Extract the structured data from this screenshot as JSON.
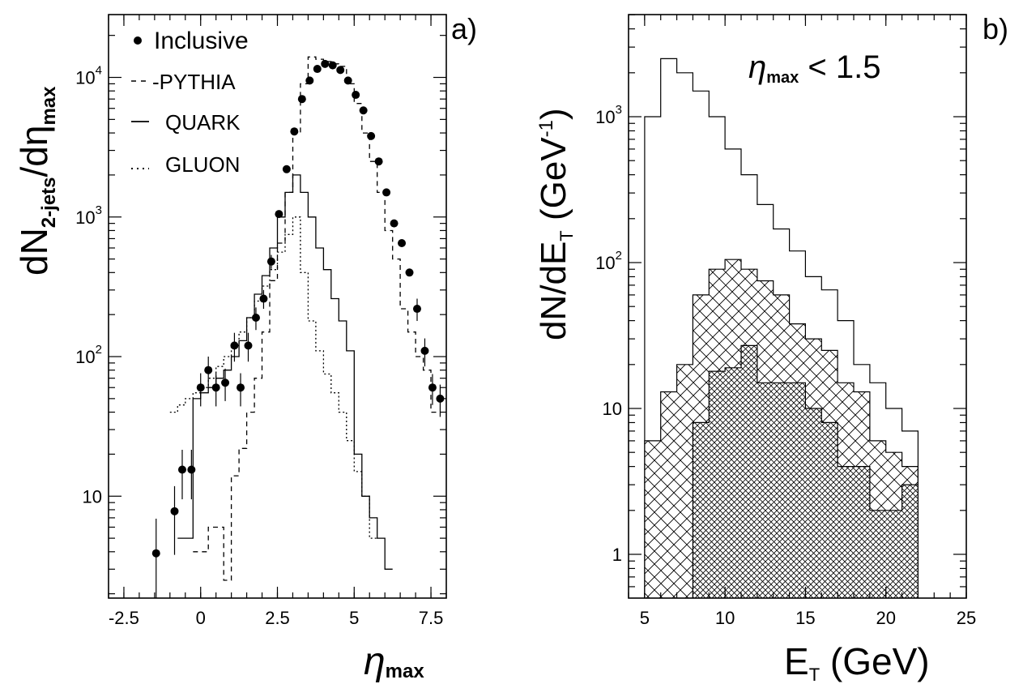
{
  "chart_data": [
    {
      "type": "line",
      "panel_label": "a)",
      "xlabel_main": "η",
      "xlabel_sub": "max",
      "ylabel_main": "dN",
      "ylabel_sub1": "2-jets",
      "ylabel_mid": "/dη",
      "ylabel_sub2": "max",
      "xlim": [
        -3.0,
        8.0
      ],
      "ylim_log10": [
        0.27,
        4.45
      ],
      "log_y": true,
      "x_ticks": [
        "-2.5",
        "0",
        "2.5",
        "5",
        "7.5"
      ],
      "x_tick_values": [
        -2.5,
        0,
        2.5,
        5,
        7.5
      ],
      "y_ticks": [
        {
          "base": "10",
          "exp": "",
          "log": 1
        },
        {
          "base": "10",
          "exp": "2",
          "log": 2
        },
        {
          "base": "10",
          "exp": "3",
          "log": 3
        },
        {
          "base": "10",
          "exp": "4",
          "log": 4
        }
      ],
      "legend": [
        {
          "name": "Inclusive",
          "marker": "dot"
        },
        {
          "name": "-PYTHIA",
          "marker": "dashed"
        },
        {
          "name": "QUARK",
          "marker": "solid"
        },
        {
          "name": "GLUON",
          "marker": "dotted"
        }
      ],
      "series": [
        {
          "name": "Inclusive",
          "style": "points",
          "x": [
            -1.45,
            -0.85,
            -0.6,
            -0.3,
            0.0,
            0.25,
            0.5,
            0.8,
            1.1,
            1.3,
            1.55,
            1.8,
            2.05,
            2.3,
            2.55,
            2.8,
            3.05,
            3.3,
            3.55,
            3.8,
            4.05,
            4.3,
            4.55,
            4.8,
            5.05,
            5.3,
            5.55,
            5.8,
            6.05,
            6.3,
            6.55,
            6.8,
            7.05,
            7.3,
            7.55,
            7.8
          ],
          "y": [
            3.9,
            7.8,
            15.5,
            15.5,
            60,
            80,
            60,
            65,
            120,
            60,
            120,
            190,
            260,
            480,
            1050,
            2200,
            4100,
            7000,
            9500,
            11500,
            12500,
            12200,
            11300,
            9500,
            7500,
            5800,
            3800,
            2500,
            1500,
            900,
            650,
            400,
            220,
            110,
            60,
            50
          ],
          "err": [
            3.0,
            4.0,
            6.0,
            6.0,
            16,
            20,
            16,
            17,
            28,
            16,
            28,
            35,
            40,
            55,
            0,
            0,
            0,
            0,
            0,
            0,
            0,
            0,
            0,
            0,
            0,
            0,
            0,
            0,
            0,
            0,
            0,
            0,
            40,
            25,
            15,
            13
          ]
        },
        {
          "name": "-PYTHIA",
          "style": "dashed",
          "edges": [
            -0.25,
            0.25,
            0.75,
            1.0,
            1.25,
            1.5,
            1.75,
            2.0,
            2.25,
            2.5,
            2.75,
            3.0,
            3.25,
            3.5,
            3.75,
            4.0,
            4.25,
            4.5,
            4.75,
            5.0,
            5.25,
            5.5,
            5.75,
            6.0,
            6.25,
            6.5,
            6.75,
            7.0,
            7.25,
            7.5,
            7.75
          ],
          "y": [
            4.0,
            6.0,
            2.5,
            14,
            22,
            40,
            70,
            150,
            350,
            650,
            1500,
            4000,
            9000,
            14000,
            13500,
            13000,
            12500,
            12000,
            9000,
            6500,
            4000,
            2500,
            1500,
            800,
            500,
            220,
            150,
            100,
            80,
            40
          ]
        },
        {
          "name": "QUARK",
          "style": "solid",
          "edges": [
            -0.75,
            -0.5,
            -0.25,
            0.0,
            0.25,
            0.5,
            0.75,
            1.0,
            1.25,
            1.5,
            1.75,
            2.0,
            2.25,
            2.5,
            2.75,
            3.0,
            3.25,
            3.5,
            3.75,
            4.0,
            4.25,
            4.5,
            4.75,
            5.0,
            5.25,
            5.5,
            5.75,
            6.0,
            6.25
          ],
          "y": [
            5.0,
            5.0,
            50,
            55,
            60,
            70,
            80,
            100,
            130,
            190,
            280,
            380,
            600,
            1000,
            1500,
            2000,
            1500,
            1000,
            600,
            420,
            260,
            180,
            110,
            20,
            10,
            7,
            5,
            3
          ]
        },
        {
          "name": "GLUON",
          "style": "dotted",
          "edges": [
            -1.0,
            -0.75,
            -0.5,
            -0.25,
            0.0,
            0.25,
            0.5,
            0.75,
            1.0,
            1.25,
            1.5,
            1.75,
            2.0,
            2.25,
            2.5,
            2.75,
            3.0,
            3.25,
            3.5,
            3.75,
            4.0,
            4.25,
            4.5,
            4.75,
            5.0,
            5.25,
            5.5,
            5.75
          ],
          "y": [
            40,
            45,
            50,
            55,
            60,
            70,
            85,
            100,
            120,
            150,
            190,
            250,
            320,
            420,
            560,
            750,
            1000,
            400,
            180,
            110,
            75,
            55,
            40,
            25,
            15,
            10,
            5
          ]
        }
      ]
    },
    {
      "type": "bar",
      "panel_label": "b)",
      "annotation_main": "η",
      "annotation_sub": "max",
      "annotation_rest": " < 1.5",
      "xlabel_main": "E",
      "xlabel_sub": "T",
      "xlabel_rest": " (GeV)",
      "ylabel_main": "dN/dE",
      "ylabel_sub": "T",
      "ylabel_rest": " (GeV",
      "ylabel_exp": "-1",
      "ylabel_close": ")",
      "xlim": [
        4.0,
        25.0
      ],
      "ylim_log10": [
        -0.3,
        3.7
      ],
      "log_y": true,
      "x_ticks": [
        "5",
        "10",
        "15",
        "20",
        "25"
      ],
      "x_tick_values": [
        5,
        10,
        15,
        20,
        25
      ],
      "y_ticks": [
        {
          "base": "1",
          "exp": "",
          "log": 0
        },
        {
          "base": "10",
          "exp": "",
          "log": 1
        },
        {
          "base": "10",
          "exp": "2",
          "log": 2
        },
        {
          "base": "10",
          "exp": "3",
          "log": 3
        }
      ],
      "series": [
        {
          "name": "",
          "style": "open",
          "edges": [
            5,
            6,
            7,
            8,
            9,
            10,
            11,
            12,
            13,
            14,
            15,
            16,
            17,
            18,
            19,
            20,
            21,
            22
          ],
          "y": [
            1000,
            2500,
            2000,
            1500,
            1000,
            600,
            400,
            250,
            170,
            120,
            80,
            65,
            40,
            20,
            15,
            10,
            7
          ]
        },
        {
          "name": "",
          "style": "hatched",
          "edges": [
            5,
            6,
            7,
            8,
            9,
            10,
            11,
            12,
            13,
            14,
            15,
            16,
            17,
            18,
            19,
            20,
            21,
            22
          ],
          "y": [
            6,
            13,
            20,
            60,
            90,
            105,
            90,
            75,
            60,
            38,
            30,
            25,
            15,
            13,
            6,
            5,
            4
          ]
        },
        {
          "name": "",
          "style": "cross-hatched",
          "edges": [
            8,
            9,
            10,
            11,
            12,
            13,
            14,
            15,
            16,
            17,
            18,
            19,
            20,
            21,
            22
          ],
          "y": [
            8,
            18,
            19,
            27,
            15,
            15,
            15,
            10,
            8,
            4,
            4,
            2,
            2,
            3
          ]
        }
      ]
    }
  ]
}
